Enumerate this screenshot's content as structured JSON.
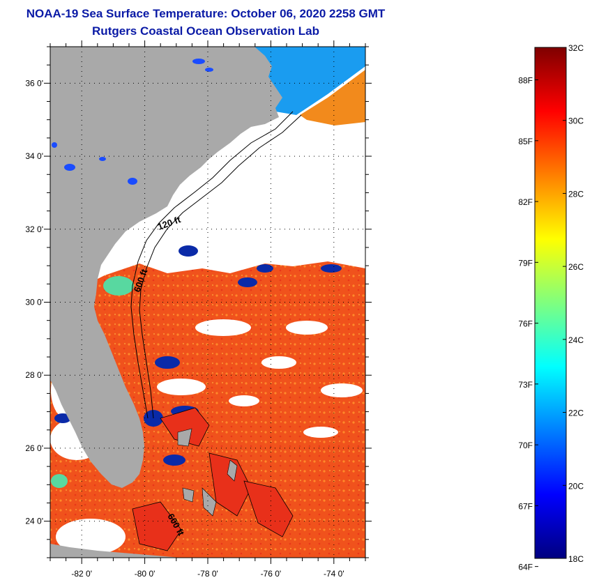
{
  "title": {
    "line1": "NOAA-19 Sea Surface Temperature:  October 06, 2020 2258 GMT",
    "line2": "Rutgers Coastal Ocean Observation Lab"
  },
  "map": {
    "lon_range": [
      -83.0,
      -73.0
    ],
    "lat_range": [
      23.0,
      37.0
    ],
    "lon_ticks": [
      {
        "value": -82,
        "label": "-82 0'"
      },
      {
        "value": -80,
        "label": "-80 0'"
      },
      {
        "value": -78,
        "label": "-78 0'"
      },
      {
        "value": -76,
        "label": "-76 0'"
      },
      {
        "value": -74,
        "label": "-74 0'"
      }
    ],
    "lat_ticks": [
      {
        "value": 36,
        "label": "36 0'"
      },
      {
        "value": 34,
        "label": "34 0'"
      },
      {
        "value": 32,
        "label": "32 0'"
      },
      {
        "value": 30,
        "label": "30 0'"
      },
      {
        "value": 28,
        "label": "28 0'"
      },
      {
        "value": 26,
        "label": "26 0'"
      },
      {
        "value": 24,
        "label": "24 0'"
      }
    ],
    "contour_labels": [
      "120 ft",
      "600 ft",
      "600 ft"
    ],
    "colors": {
      "land": "#a9a9a9",
      "cloud": "#ffffff",
      "warm_sst": "#f2501c",
      "gridline": "#000000"
    }
  },
  "colorbar": {
    "range_c": [
      18,
      32
    ],
    "celsius_labels": [
      "32C",
      "30C",
      "28C",
      "26C",
      "24C",
      "22C",
      "20C",
      "18C"
    ],
    "fahrenheit_labels": [
      "88F",
      "85F",
      "82F",
      "79F",
      "76F",
      "73F",
      "70F",
      "67F",
      "64F"
    ],
    "colormap": [
      "#00007f",
      "#0000ff",
      "#007fff",
      "#00ffff",
      "#7fff7f",
      "#ffff00",
      "#ff7f00",
      "#ff0000",
      "#7f0000"
    ]
  }
}
